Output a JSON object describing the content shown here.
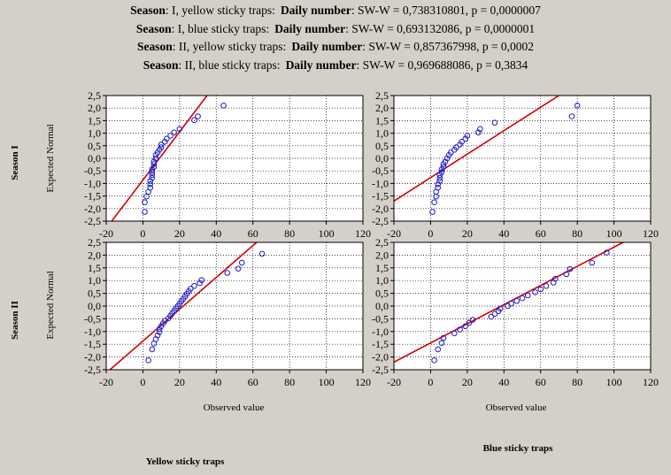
{
  "header_lines": [
    {
      "season_label": "Season",
      "season_value": ": I, yellow sticky traps:",
      "metric_label": "Daily number",
      "metric_value": ":  SW-W = 0,738310801, p = 0,0000007"
    },
    {
      "season_label": "Season",
      "season_value": ": I, blue sticky traps:",
      "metric_label": "Daily number",
      "metric_value": ":  SW-W = 0,693132086, p = 0,0000001"
    },
    {
      "season_label": "Season",
      "season_value": ": II, yellow sticky traps:",
      "metric_label": "Daily number",
      "metric_value": ":  SW-W = 0,857367998, p = 0,0002"
    },
    {
      "season_label": "Season",
      "season_value": ": II, blue sticky traps:",
      "metric_label": "Daily number",
      "metric_value": ":  SW-W = 0,969688086, p = 0,3834"
    }
  ],
  "row_labels": [
    "Season I",
    "Season II"
  ],
  "column_labels": [
    "Yellow sticky traps",
    "Blue sticky traps"
  ],
  "ylabel": "Expected Normal",
  "xlabel": "Observed value",
  "colors": {
    "points": "#1c1cc8",
    "line": "#d40000",
    "grid": "#000000",
    "background": "#d4d0c8",
    "panel": "#ffffff"
  },
  "chart_data": [
    {
      "type": "scatter",
      "row": "Season I",
      "column": "Yellow sticky traps",
      "xlim": [
        -20,
        120
      ],
      "ylim": [
        -2.5,
        2.5
      ],
      "grid": true,
      "x_ticks": [
        "-20",
        "0",
        "20",
        "40",
        "60",
        "80",
        "100",
        "120"
      ],
      "y_ticks": [
        "2,5",
        "2,0",
        "1,5",
        "1,0",
        "0,5",
        "0,0",
        "-0,5",
        "-1,0",
        "-1,5",
        "-2,0",
        "-2,5"
      ],
      "x": [
        1,
        1,
        2,
        3,
        4,
        4,
        4,
        5,
        5,
        5,
        5,
        6,
        6,
        6,
        7,
        7,
        8,
        9,
        10,
        10,
        12,
        13,
        15,
        17,
        20,
        28,
        30,
        44
      ],
      "y": [
        -2.13,
        -1.75,
        -1.52,
        -1.33,
        -1.17,
        -1.03,
        -0.9,
        -0.78,
        -0.66,
        -0.55,
        -0.44,
        -0.34,
        -0.23,
        -0.13,
        0.0,
        0.13,
        0.23,
        0.34,
        0.44,
        0.55,
        0.66,
        0.78,
        0.9,
        1.03,
        1.17,
        1.52,
        1.67,
        2.1
      ],
      "fit_line": {
        "x": [
          -17,
          35
        ],
        "y": [
          -2.5,
          2.5
        ]
      }
    },
    {
      "type": "scatter",
      "row": "Season I",
      "column": "Blue sticky traps",
      "xlim": [
        -20,
        120
      ],
      "ylim": [
        -2.5,
        2.5
      ],
      "grid": true,
      "x_ticks": [
        "-20",
        "0",
        "20",
        "40",
        "60",
        "80",
        "100",
        "120"
      ],
      "y_ticks": [
        "2,5",
        "2,0",
        "1,5",
        "1,0",
        "0,5",
        "0,0",
        "-0,5",
        "-1,0",
        "-1,5",
        "-2,0",
        "-2,5"
      ],
      "x": [
        1,
        2,
        3,
        3,
        4,
        4,
        5,
        5,
        5,
        6,
        6,
        7,
        7,
        8,
        9,
        10,
        11,
        13,
        14,
        16,
        17,
        19,
        20,
        26,
        27,
        35,
        77,
        80
      ],
      "y": [
        -2.13,
        -1.75,
        -1.52,
        -1.33,
        -1.17,
        -1.03,
        -0.9,
        -0.78,
        -0.66,
        -0.55,
        -0.44,
        -0.34,
        -0.23,
        -0.13,
        0.0,
        0.13,
        0.23,
        0.34,
        0.44,
        0.55,
        0.66,
        0.78,
        0.9,
        1.03,
        1.17,
        1.42,
        1.67,
        2.1
      ],
      "fit_line": {
        "x": [
          -20,
          70
        ],
        "y": [
          -1.7,
          2.5
        ]
      }
    },
    {
      "type": "scatter",
      "row": "Season II",
      "column": "Yellow sticky traps",
      "xlim": [
        -20,
        120
      ],
      "ylim": [
        -2.5,
        2.5
      ],
      "grid": true,
      "x_ticks": [
        "-20",
        "0",
        "20",
        "40",
        "60",
        "80",
        "100",
        "120"
      ],
      "y_ticks": [
        "2,5",
        "2,0",
        "1,5",
        "1,0",
        "0,5",
        "0,0",
        "-0,5",
        "-1,0",
        "-1,5",
        "-2,0",
        "-2,5"
      ],
      "x": [
        3,
        5,
        6,
        7,
        8,
        9,
        9,
        10,
        11,
        12,
        14,
        15,
        16,
        17,
        18,
        19,
        20,
        21,
        22,
        23,
        24,
        25,
        26,
        28,
        31,
        32,
        46,
        52,
        54,
        65
      ],
      "y": [
        -2.13,
        -1.7,
        -1.47,
        -1.3,
        -1.15,
        -1.02,
        -0.9,
        -0.79,
        -0.68,
        -0.58,
        -0.48,
        -0.38,
        -0.28,
        -0.19,
        -0.09,
        0.0,
        0.09,
        0.19,
        0.28,
        0.38,
        0.48,
        0.58,
        0.68,
        0.79,
        0.9,
        1.02,
        1.3,
        1.47,
        1.7,
        2.05
      ],
      "fit_line": {
        "x": [
          -18,
          62
        ],
        "y": [
          -2.5,
          2.5
        ]
      }
    },
    {
      "type": "scatter",
      "row": "Season II",
      "column": "Blue sticky traps",
      "xlim": [
        -20,
        120
      ],
      "ylim": [
        -2.5,
        2.5
      ],
      "grid": true,
      "x_ticks": [
        "-20",
        "0",
        "20",
        "40",
        "60",
        "80",
        "100",
        "120"
      ],
      "y_ticks": [
        "2,5",
        "2,0",
        "1,5",
        "1,0",
        "0,5",
        "0,0",
        "-0,5",
        "-1,0",
        "-1,5",
        "-2,0",
        "-2,5"
      ],
      "x": [
        2,
        4,
        6,
        7,
        13,
        16,
        19,
        21,
        23,
        33,
        35,
        37,
        38,
        42,
        44,
        47,
        50,
        53,
        57,
        60,
        63,
        67,
        68,
        74,
        76,
        88,
        96
      ],
      "y": [
        -2.13,
        -1.7,
        -1.45,
        -1.25,
        -1.07,
        -0.92,
        -0.79,
        -0.66,
        -0.54,
        -0.42,
        -0.31,
        -0.2,
        -0.1,
        0.0,
        0.1,
        0.2,
        0.31,
        0.42,
        0.54,
        0.66,
        0.79,
        0.92,
        1.07,
        1.25,
        1.45,
        1.7,
        2.1
      ],
      "fit_line": {
        "x": [
          -20,
          105
        ],
        "y": [
          -2.2,
          2.5
        ]
      }
    }
  ]
}
